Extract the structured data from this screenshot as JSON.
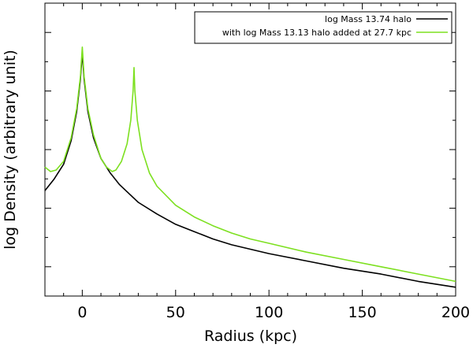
{
  "chart_data": {
    "type": "line",
    "title": "",
    "xlabel": "Radius (kpc)",
    "ylabel": "log Density (arbitrary unit)",
    "xlim": [
      -20,
      200
    ],
    "ylim": [
      0,
      1
    ],
    "x_ticks": [
      "0",
      "50",
      "100",
      "150",
      "200"
    ],
    "x_tick_values": [
      0,
      50,
      100,
      150,
      200
    ],
    "y_tick_labels_shown": false,
    "grid": false,
    "legend_position": "top-right",
    "series": [
      {
        "name": "log Mass 13.74 halo",
        "color": "#000000",
        "points": [
          [
            -20,
            0.36
          ],
          [
            -15,
            0.4
          ],
          [
            -10,
            0.45
          ],
          [
            -6,
            0.53
          ],
          [
            -3,
            0.63
          ],
          [
            -1,
            0.74
          ],
          [
            0,
            0.83
          ],
          [
            1,
            0.74
          ],
          [
            3,
            0.63
          ],
          [
            6,
            0.54
          ],
          [
            10,
            0.47
          ],
          [
            15,
            0.42
          ],
          [
            20,
            0.38
          ],
          [
            30,
            0.32
          ],
          [
            40,
            0.28
          ],
          [
            50,
            0.245
          ],
          [
            60,
            0.22
          ],
          [
            70,
            0.195
          ],
          [
            80,
            0.175
          ],
          [
            90,
            0.16
          ],
          [
            100,
            0.145
          ],
          [
            120,
            0.12
          ],
          [
            140,
            0.095
          ],
          [
            160,
            0.075
          ],
          [
            180,
            0.05
          ],
          [
            200,
            0.03
          ]
        ]
      },
      {
        "name": "with log Mass 13.13 halo added at 27.7 kpc",
        "color": "#7de020",
        "points": [
          [
            -20,
            0.44
          ],
          [
            -17,
            0.425
          ],
          [
            -14,
            0.43
          ],
          [
            -10,
            0.46
          ],
          [
            -6,
            0.54
          ],
          [
            -3,
            0.64
          ],
          [
            -1,
            0.75
          ],
          [
            0,
            0.85
          ],
          [
            1,
            0.75
          ],
          [
            3,
            0.64
          ],
          [
            6,
            0.55
          ],
          [
            10,
            0.47
          ],
          [
            13,
            0.44
          ],
          [
            16,
            0.425
          ],
          [
            18,
            0.43
          ],
          [
            21,
            0.46
          ],
          [
            24,
            0.52
          ],
          [
            26,
            0.6
          ],
          [
            27.2,
            0.7
          ],
          [
            27.7,
            0.78
          ],
          [
            28.2,
            0.7
          ],
          [
            29.5,
            0.6
          ],
          [
            32,
            0.5
          ],
          [
            36,
            0.42
          ],
          [
            40,
            0.375
          ],
          [
            50,
            0.31
          ],
          [
            60,
            0.27
          ],
          [
            70,
            0.24
          ],
          [
            80,
            0.215
          ],
          [
            90,
            0.195
          ],
          [
            100,
            0.18
          ],
          [
            120,
            0.15
          ],
          [
            140,
            0.125
          ],
          [
            160,
            0.1
          ],
          [
            180,
            0.075
          ],
          [
            200,
            0.05
          ]
        ]
      }
    ]
  }
}
